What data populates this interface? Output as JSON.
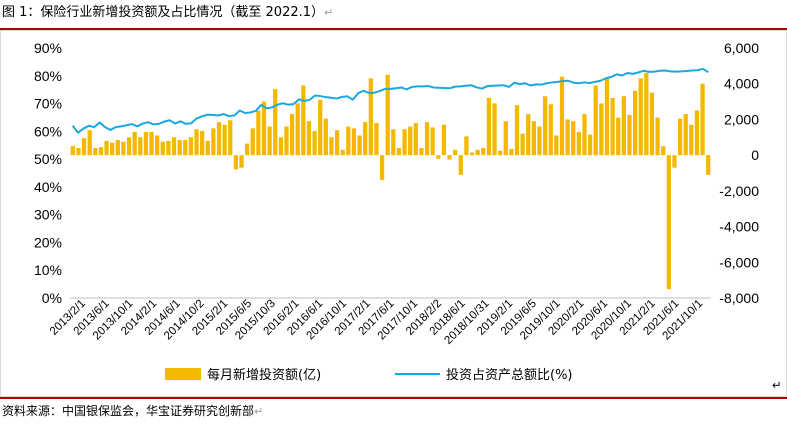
{
  "header": {
    "title": "图 1：保险行业新增投资额及占比情况（截至 2022.1）"
  },
  "footer": {
    "source": "资料来源：中国银保监会，华宝证券研究创新部"
  },
  "chart_data": {
    "type": "bar",
    "y_left": {
      "ticks": [
        "0%",
        "10%",
        "20%",
        "30%",
        "40%",
        "50%",
        "60%",
        "70%",
        "80%",
        "90%"
      ],
      "min": 0,
      "max": 90
    },
    "y_right": {
      "ticks": [
        "-8,000",
        "-6,000",
        "-4,000",
        "-2,000",
        "0",
        "2,000",
        "4,000",
        "6,000"
      ],
      "min": -8000,
      "max": 6000
    },
    "x_labels": [
      "2013/2/1",
      "2013/6/1",
      "2013/10/1",
      "2014/2/1",
      "2014/6/1",
      "2014/10/2",
      "2015/2/1",
      "2015/6/5",
      "2015/10/3",
      "2016/2/1",
      "2016/6/1",
      "2016/10/1",
      "2017/2/1",
      "2017/6/1",
      "2017/10/1",
      "2018/2/2",
      "2018/6/1",
      "2018/10/31",
      "2019/2/1",
      "2019/6/5",
      "2019/10/1",
      "2020/2/1",
      "2020/6/1",
      "2020/10/1",
      "2021/2/1",
      "2021/6/1",
      "2021/10/1"
    ],
    "series": [
      {
        "name": "每月新增投资额(亿)",
        "type": "bar",
        "axis": "right",
        "color": "#f5b800",
        "values": [
          500,
          400,
          950,
          1400,
          400,
          450,
          800,
          700,
          850,
          750,
          1000,
          1300,
          1000,
          1300,
          1300,
          1100,
          750,
          800,
          1000,
          850,
          850,
          1000,
          1450,
          1350,
          800,
          1500,
          1850,
          1700,
          1950,
          -800,
          -700,
          650,
          1500,
          2500,
          3000,
          1600,
          3700,
          1000,
          1600,
          2300,
          2900,
          3900,
          1900,
          1350,
          3100,
          2050,
          1000,
          1400,
          300,
          1600,
          1500,
          1100,
          1850,
          4300,
          1800,
          -1400,
          4500,
          1450,
          400,
          1450,
          1600,
          1800,
          400,
          1850,
          1550,
          -200,
          1700,
          -250,
          300,
          -1100,
          1050,
          150,
          300,
          400,
          3200,
          2900,
          250,
          1900,
          350,
          2800,
          1200,
          2300,
          1900,
          1600,
          3300,
          2850,
          1100,
          4400,
          2000,
          1900,
          1300,
          2300,
          1150,
          3900,
          2900,
          4300,
          3200,
          2100,
          3300,
          2250,
          3600,
          4300,
          4600,
          3500,
          2100,
          500,
          -7500,
          -700,
          2050,
          2300,
          1700,
          2500,
          4000,
          -1100
        ]
      },
      {
        "name": "投资占资产总额比(%)",
        "type": "line",
        "axis": "left",
        "color": "#1aa9de",
        "values": [
          62,
          59.5,
          61,
          62,
          61.5,
          63.2,
          61.5,
          60.5,
          61.5,
          61.8,
          62.2,
          62.6,
          61.8,
          62.8,
          63.3,
          62.5,
          62.7,
          63.5,
          64,
          62.8,
          63.6,
          62.7,
          62.9,
          64.6,
          65.4,
          66,
          65.9,
          65.7,
          66.2,
          65.5,
          65.7,
          67.5,
          66.6,
          66.8,
          67.4,
          69.5,
          68.3,
          68.6,
          69.6,
          70.1,
          69.6,
          69.8,
          71.5,
          70.9,
          71.4,
          72.9,
          72.7,
          72.3,
          72.1,
          71.8,
          72.4,
          72.6,
          71.4,
          73.7,
          74.6,
          73.8,
          73.9,
          74.5,
          75.3,
          75.3,
          75.5,
          75.8,
          75.1,
          76,
          76.2,
          76.2,
          76.3,
          75.8,
          75.7,
          75.6,
          75.5,
          76.1,
          76.2,
          76.4,
          76.6,
          75.8,
          75.4,
          76.3,
          76.4,
          76.5,
          76.6,
          76,
          77.5,
          77,
          77.3,
          76.5,
          76.9,
          76.8,
          77.3,
          77.6,
          77.8,
          78.1,
          78.2,
          77.5,
          77.3,
          77.6,
          77.4,
          77.8,
          78.2,
          79.1,
          79.6,
          80.5,
          80.1,
          81,
          80.7,
          81.2,
          81.8,
          81.4,
          81.5,
          81.8,
          81.9,
          81.6,
          81.5,
          81.6,
          81.7,
          81.9,
          82,
          82.5,
          81.3
        ]
      }
    ],
    "legend_position": "bottom",
    "grid": false
  }
}
